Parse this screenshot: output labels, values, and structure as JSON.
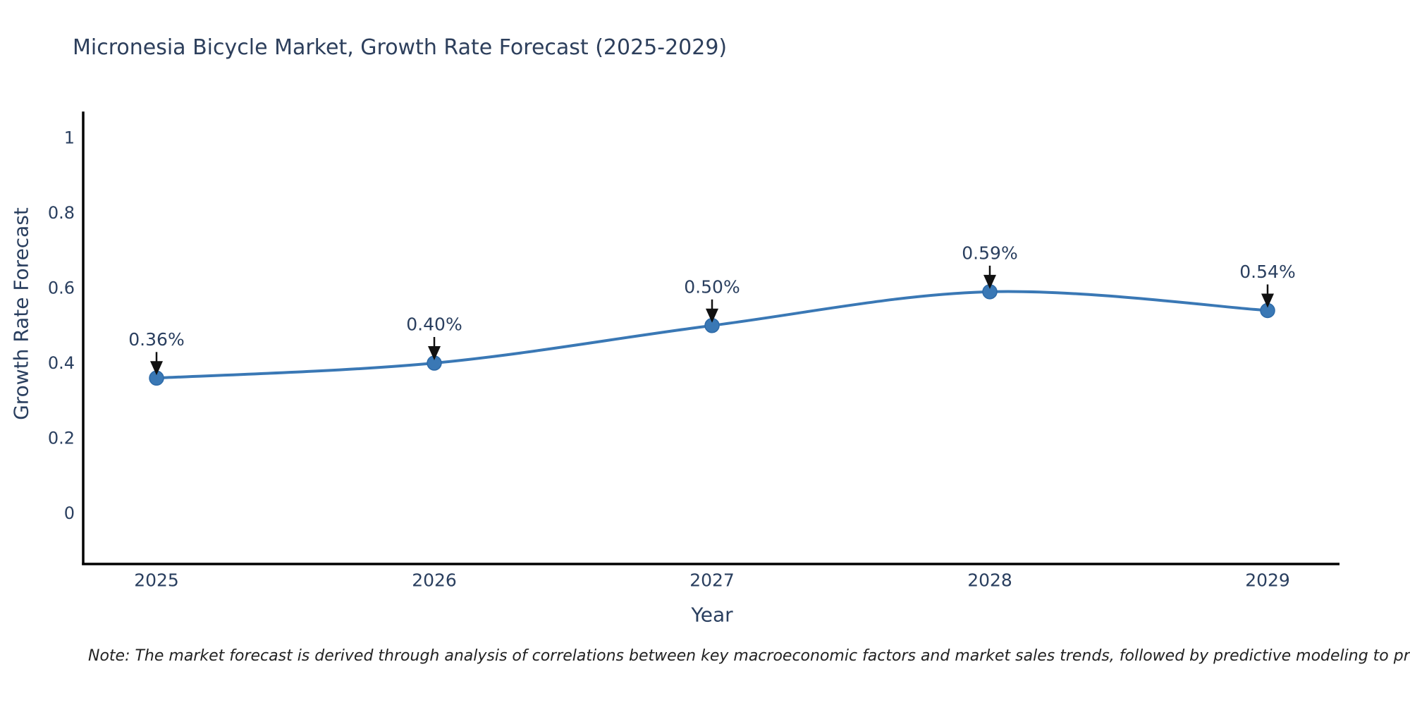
{
  "title": "Micronesia Bicycle Market, Growth Rate Forecast (2025-2029)",
  "note": "Note: The market forecast is derived through analysis of correlations between key macroeconomic factors and market sales trends, followed by predictive modeling to project future sales",
  "chart_data": {
    "type": "line",
    "title": "Micronesia Bicycle Market, Growth Rate Forecast (2025-2029)",
    "xlabel": "Year",
    "ylabel": "Growth Rate Forecast",
    "categories": [
      "2025",
      "2026",
      "2027",
      "2028",
      "2029"
    ],
    "values": [
      0.36,
      0.4,
      0.5,
      0.59,
      0.54
    ],
    "point_labels": [
      "0.36%",
      "0.40%",
      "0.50%",
      "0.59%",
      "0.54%"
    ],
    "ytick_values": [
      0,
      0.2,
      0.4,
      0.6,
      0.8,
      1
    ],
    "ytick_labels": [
      "0",
      "0.2",
      "0.4",
      "0.6",
      "0.8",
      "1"
    ],
    "ylim": [
      -0.135,
      1.07
    ],
    "grid": false,
    "legend": false,
    "line_smooth": true,
    "annotation_arrows": true,
    "colors": {
      "line": "#3a78b5",
      "marker_fill": "#3a78b5",
      "marker_edge": "#2d6aa8",
      "chart_text": "#2a3f5f",
      "axis_line": "#000000",
      "arrow": "#111111",
      "note_text": "#222222"
    }
  }
}
